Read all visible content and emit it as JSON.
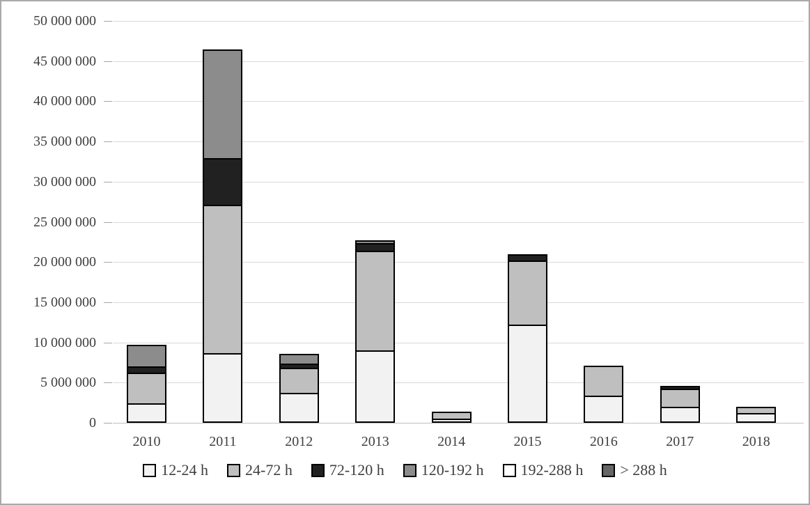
{
  "chart_data": {
    "type": "bar",
    "subtype": "stacked",
    "title": "",
    "xlabel": "",
    "ylabel": "",
    "categories": [
      "2010",
      "2011",
      "2012",
      "2013",
      "2014",
      "2015",
      "2016",
      "2017",
      "2018"
    ],
    "series": [
      {
        "name": "12-24 h",
        "color": "#f2f2f2",
        "values": [
          2400000,
          8700000,
          3700000,
          9000000,
          400000,
          12200000,
          3400000,
          2000000,
          1200000
        ]
      },
      {
        "name": "24-72 h",
        "color": "#bfbfbf",
        "values": [
          4000000,
          18600000,
          3300000,
          12600000,
          1000000,
          8200000,
          3900000,
          2400000,
          1000000
        ]
      },
      {
        "name": "72-120 h",
        "color": "#212121",
        "values": [
          1000000,
          6000000,
          700000,
          1100000,
          0,
          900000,
          0,
          500000,
          0
        ]
      },
      {
        "name": "120-192 h",
        "color": "#8c8c8c",
        "values": [
          2800000,
          13700000,
          1400000,
          200000,
          0,
          0,
          0,
          0,
          0
        ]
      },
      {
        "name": "192-288 h",
        "color": "#ffffff",
        "values": [
          0,
          0,
          0,
          0,
          0,
          0,
          0,
          0,
          0
        ]
      },
      {
        "name": "> 288 h",
        "color": "#666666",
        "values": [
          0,
          0,
          0,
          0,
          0,
          0,
          0,
          0,
          0
        ]
      }
    ],
    "ylim": [
      0,
      50000000
    ],
    "y_tick_step": 5000000,
    "y_tick_labels": [
      "0",
      "5 000 000",
      "10 000 000",
      "15 000 000",
      "20 000 000",
      "25 000 000",
      "30 000 000",
      "35 000 000",
      "40 000 000",
      "45 000 000",
      "50 000 000"
    ],
    "grid": "horizontal",
    "legend_position": "bottom",
    "segment_border_color": "#000000",
    "gridline_color": "#d9d9d9",
    "text_color": "#3f3f3f"
  }
}
